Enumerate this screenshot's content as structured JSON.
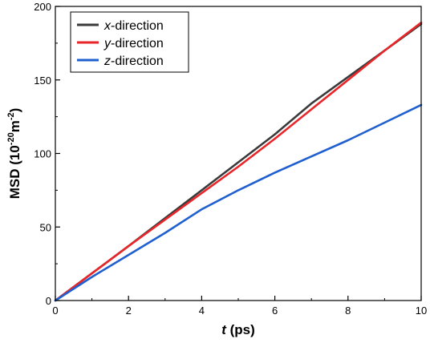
{
  "chart_data": {
    "type": "line",
    "xlabel": {
      "var": "t",
      "unit": " (ps)"
    },
    "ylabel": {
      "prefix": "MSD (10",
      "exp1": "-20",
      "mid": "m",
      "exp2": "-2",
      "suffix": ")"
    },
    "xlim": [
      0,
      10
    ],
    "ylim": [
      0,
      200
    ],
    "xticks": [
      0,
      2,
      4,
      6,
      8,
      10
    ],
    "yticks": [
      0,
      50,
      100,
      150,
      200
    ],
    "legend_position": "top-left",
    "grid": false,
    "series": [
      {
        "name_var": "x",
        "name_rest": "-direction",
        "color": "#3a3a3a",
        "x": [
          0,
          1,
          2,
          3,
          4,
          5,
          6,
          7,
          8,
          9,
          10
        ],
        "y": [
          0,
          18.5,
          37,
          56,
          75,
          94,
          113,
          134,
          152,
          170,
          188
        ]
      },
      {
        "name_var": "y",
        "name_rest": "-direction",
        "color": "#e8262a",
        "x": [
          0,
          1,
          2,
          3,
          4,
          5,
          6,
          7,
          8,
          9,
          10
        ],
        "y": [
          0,
          18.5,
          37,
          55,
          73,
          91,
          110,
          130,
          150,
          170,
          189
        ]
      },
      {
        "name_var": "z",
        "name_rest": "-direction",
        "color": "#1f5fd0",
        "x": [
          0,
          1,
          2,
          3,
          4,
          5,
          6,
          7,
          8,
          9,
          10
        ],
        "y": [
          0,
          16,
          31,
          46,
          62,
          75,
          87,
          98,
          109,
          121,
          133
        ]
      }
    ]
  }
}
